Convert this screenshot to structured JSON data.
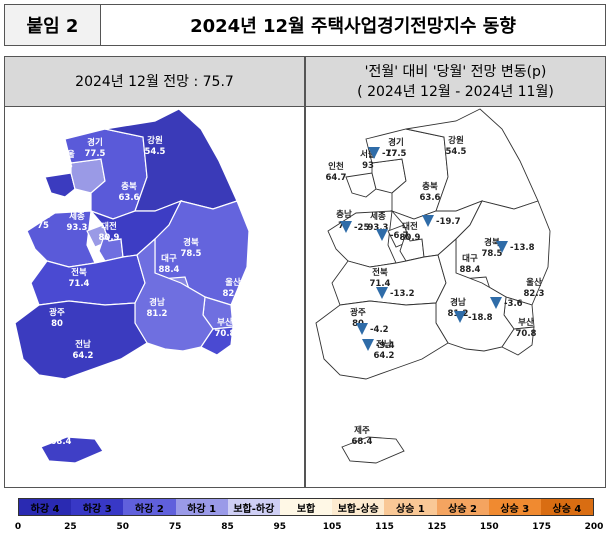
{
  "appendix": {
    "tag": "붙임 2",
    "title": "2024년 12월 주택사업경기전망지수 동향"
  },
  "left_panel": {
    "title": "2024년 12월 전망 : 75.7"
  },
  "right_panel": {
    "title_line1": "'전월' 대비 '당월' 전망 변동(p)",
    "title_line2": "( 2024년 12월  -   2024년 11월)"
  },
  "regions": [
    {
      "name": "인천",
      "value": "64.7",
      "change": "",
      "color": "#3b3bbf"
    },
    {
      "name": "서울",
      "value": "93",
      "change": "-17",
      "color": "#9a9ae6"
    },
    {
      "name": "경기",
      "value": "77.5",
      "change": "",
      "color": "#5a5ad9"
    },
    {
      "name": "강원",
      "value": "54.5",
      "change": "",
      "color": "#3a3ab8"
    },
    {
      "name": "충남",
      "value": "75",
      "change": "-25",
      "color": "#5a5ad9"
    },
    {
      "name": "세종",
      "value": "93.3",
      "change": "-6.7",
      "color": "#9a9ae6"
    },
    {
      "name": "대전",
      "value": "80.9",
      "change": "",
      "color": "#6f6fe0"
    },
    {
      "name": "충북",
      "value": "63.6",
      "change": "-19.7",
      "color": "#3d3dc4"
    },
    {
      "name": "경북",
      "value": "78.5",
      "change": "-13.8",
      "color": "#6464dd"
    },
    {
      "name": "대구",
      "value": "88.4",
      "change": "",
      "color": "#8585e3"
    },
    {
      "name": "울산",
      "value": "82.3",
      "change": "",
      "color": "#6f6fe0"
    },
    {
      "name": "전북",
      "value": "71.4",
      "change": "-13.2",
      "color": "#4a4ad2"
    },
    {
      "name": "경남",
      "value": "81.2",
      "change": "-18.8",
      "color": "#6f6fe0"
    },
    {
      "name": "부산",
      "value": "70.8",
      "change": "",
      "color": "#4a4ad2"
    },
    {
      "name": "광주",
      "value": "80",
      "change": "-4.2",
      "color": "#6a6adf"
    },
    {
      "name": "전남",
      "value": "64.2",
      "change": "-9.4",
      "color": "#3b3bbf"
    },
    {
      "name": "제주",
      "value": "68.4",
      "change": "",
      "color": "#3f3fc6"
    }
  ],
  "extra_changes": [
    "-3.6"
  ],
  "legend": {
    "bins": [
      {
        "label": "하강 4",
        "color": "#2a2ab2"
      },
      {
        "label": "하강 3",
        "color": "#3838c6"
      },
      {
        "label": "하강 2",
        "color": "#6060dc"
      },
      {
        "label": "하강 1",
        "color": "#9a9ae8"
      },
      {
        "label": "보합-하강",
        "color": "#cfcff5"
      },
      {
        "label": "보합",
        "color": "#fff8e6"
      },
      {
        "label": "보합-상승",
        "color": "#fdebd0"
      },
      {
        "label": "상승 1",
        "color": "#f9c896"
      },
      {
        "label": "상승 2",
        "color": "#f4a460"
      },
      {
        "label": "상승 3",
        "color": "#f08a30"
      },
      {
        "label": "상승 4",
        "color": "#d96d12"
      }
    ],
    "ticks": [
      "0",
      "25",
      "50",
      "75",
      "85",
      "95",
      "105",
      "115",
      "125",
      "150",
      "175",
      "200"
    ]
  },
  "colors": {
    "map_outline_right": "#333333",
    "triangle_down": "#2f6ca8"
  }
}
